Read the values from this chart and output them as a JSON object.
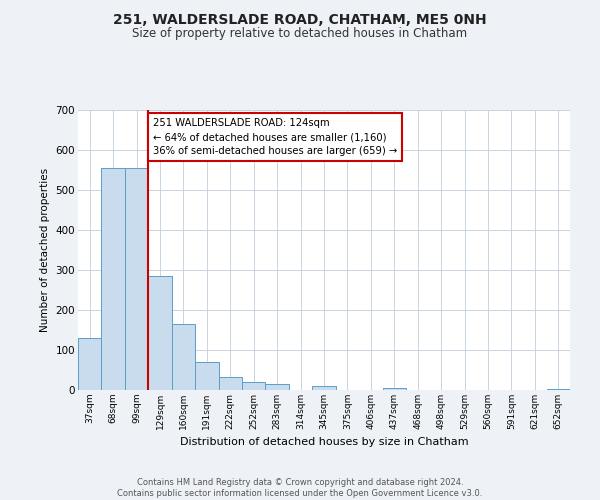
{
  "title": "251, WALDERSLADE ROAD, CHATHAM, ME5 0NH",
  "subtitle": "Size of property relative to detached houses in Chatham",
  "xlabel": "Distribution of detached houses by size in Chatham",
  "ylabel": "Number of detached properties",
  "bar_labels": [
    "37sqm",
    "68sqm",
    "99sqm",
    "129sqm",
    "160sqm",
    "191sqm",
    "222sqm",
    "252sqm",
    "283sqm",
    "314sqm",
    "345sqm",
    "375sqm",
    "406sqm",
    "437sqm",
    "468sqm",
    "498sqm",
    "529sqm",
    "560sqm",
    "591sqm",
    "621sqm",
    "652sqm"
  ],
  "bar_values": [
    130,
    555,
    555,
    285,
    165,
    70,
    33,
    20,
    15,
    0,
    10,
    0,
    0,
    5,
    0,
    0,
    0,
    0,
    0,
    0,
    2
  ],
  "bar_color": "#c9dced",
  "bar_edge_color": "#5b9dc9",
  "ylim": [
    0,
    700
  ],
  "yticks": [
    0,
    100,
    200,
    300,
    400,
    500,
    600,
    700
  ],
  "property_line_color": "#cc0000",
  "annotation_box_color": "#cc0000",
  "annotation_line1": "251 WALDERSLADE ROAD: 124sqm",
  "annotation_line2": "← 64% of detached houses are smaller (1,160)",
  "annotation_line3": "36% of semi-detached houses are larger (659) →",
  "footer_line1": "Contains HM Land Registry data © Crown copyright and database right 2024.",
  "footer_line2": "Contains public sector information licensed under the Open Government Licence v3.0.",
  "background_color": "#eef2f7",
  "plot_background_color": "#ffffff",
  "grid_color": "#c8d4e0"
}
